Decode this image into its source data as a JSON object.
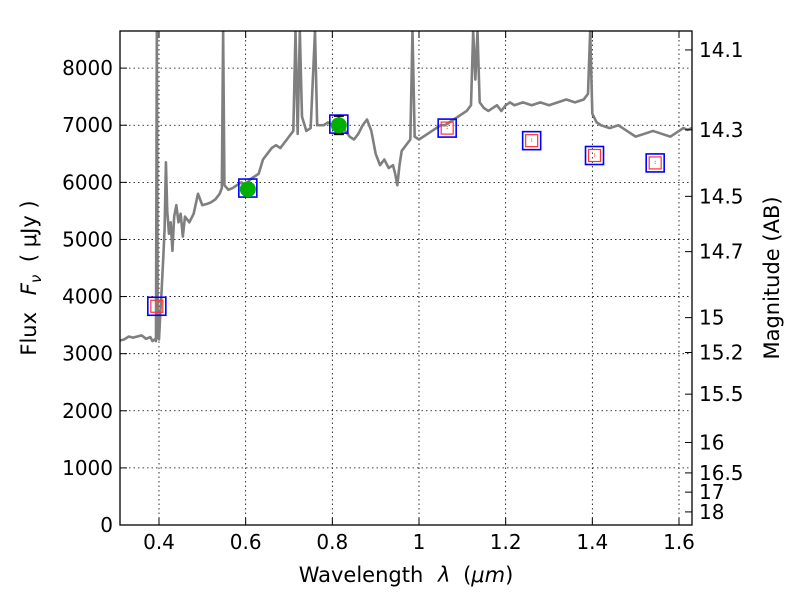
{
  "chart_data": {
    "type": "line",
    "xlabel_text": "Wavelength",
    "xlabel_symbol": "λ",
    "xlabel_unit_open": "(",
    "xlabel_unit": "μm",
    "xlabel_unit_close": ")",
    "ylabel_text": "Flux",
    "ylabel_symbol_main": "F",
    "ylabel_symbol_sub": "ν",
    "ylabel_unit": "( μJy )",
    "y2label": "Magnitude (AB)",
    "xlim": [
      0.31,
      1.63
    ],
    "ylim": [
      0,
      8650
    ],
    "grid": true,
    "x_ticks": [
      {
        "v": 0.4,
        "label": "0.4"
      },
      {
        "v": 0.6,
        "label": "0.6"
      },
      {
        "v": 0.8,
        "label": "0.8"
      },
      {
        "v": 1.0,
        "label": "1"
      },
      {
        "v": 1.2,
        "label": "1.2"
      },
      {
        "v": 1.4,
        "label": "1.4"
      },
      {
        "v": 1.6,
        "label": "1.6"
      }
    ],
    "y_ticks": [
      {
        "v": 0,
        "label": "0"
      },
      {
        "v": 1000,
        "label": "1000"
      },
      {
        "v": 2000,
        "label": "2000"
      },
      {
        "v": 3000,
        "label": "3000"
      },
      {
        "v": 4000,
        "label": "4000"
      },
      {
        "v": 5000,
        "label": "5000"
      },
      {
        "v": 6000,
        "label": "6000"
      },
      {
        "v": 7000,
        "label": "7000"
      },
      {
        "v": 8000,
        "label": "8000"
      }
    ],
    "y2_ticks": [
      {
        "mag": 14.1,
        "label": "14.1"
      },
      {
        "mag": 14.3,
        "label": "14.3"
      },
      {
        "mag": 14.5,
        "label": "14.5"
      },
      {
        "mag": 14.7,
        "label": "14.7"
      },
      {
        "mag": 15.0,
        "label": "15"
      },
      {
        "mag": 15.2,
        "label": "15.2"
      },
      {
        "mag": 15.5,
        "label": "15.5"
      },
      {
        "mag": 16.0,
        "label": "16"
      },
      {
        "mag": 16.5,
        "label": "16.5"
      },
      {
        "mag": 17.0,
        "label": "17"
      },
      {
        "mag": 18.0,
        "label": "18"
      }
    ],
    "spectrum": {
      "color": "#7f7f7f",
      "points": [
        [
          0.31,
          3230
        ],
        [
          0.32,
          3250
        ],
        [
          0.33,
          3300
        ],
        [
          0.34,
          3280
        ],
        [
          0.35,
          3300
        ],
        [
          0.36,
          3320
        ],
        [
          0.37,
          3260
        ],
        [
          0.38,
          3290
        ],
        [
          0.385,
          3220
        ],
        [
          0.39,
          3250
        ],
        [
          0.393,
          3220
        ],
        [
          0.395,
          8650
        ],
        [
          0.397,
          3300
        ],
        [
          0.4,
          3250
        ],
        [
          0.403,
          3700
        ],
        [
          0.406,
          4100
        ],
        [
          0.41,
          4700
        ],
        [
          0.413,
          5200
        ],
        [
          0.416,
          6350
        ],
        [
          0.419,
          5500
        ],
        [
          0.423,
          5100
        ],
        [
          0.427,
          5300
        ],
        [
          0.431,
          4800
        ],
        [
          0.435,
          5400
        ],
        [
          0.44,
          5600
        ],
        [
          0.445,
          5300
        ],
        [
          0.45,
          5450
        ],
        [
          0.455,
          5050
        ],
        [
          0.46,
          5400
        ],
        [
          0.47,
          5300
        ],
        [
          0.48,
          5450
        ],
        [
          0.49,
          5800
        ],
        [
          0.5,
          5600
        ],
        [
          0.51,
          5620
        ],
        [
          0.52,
          5650
        ],
        [
          0.53,
          5700
        ],
        [
          0.54,
          5800
        ],
        [
          0.545,
          5900
        ],
        [
          0.548,
          8650
        ],
        [
          0.551,
          5950
        ],
        [
          0.56,
          5870
        ],
        [
          0.57,
          5900
        ],
        [
          0.58,
          5950
        ],
        [
          0.59,
          6000
        ],
        [
          0.6,
          5950
        ],
        [
          0.61,
          6050
        ],
        [
          0.62,
          6100
        ],
        [
          0.63,
          6150
        ],
        [
          0.64,
          6400
        ],
        [
          0.65,
          6500
        ],
        [
          0.66,
          6600
        ],
        [
          0.67,
          6650
        ],
        [
          0.68,
          6600
        ],
        [
          0.69,
          6700
        ],
        [
          0.7,
          6800
        ],
        [
          0.71,
          6900
        ],
        [
          0.715,
          8650
        ],
        [
          0.72,
          6850
        ],
        [
          0.725,
          8650
        ],
        [
          0.73,
          7150
        ],
        [
          0.74,
          6900
        ],
        [
          0.75,
          6950
        ],
        [
          0.76,
          8650
        ],
        [
          0.765,
          7000
        ],
        [
          0.78,
          7000
        ],
        [
          0.79,
          7050
        ],
        [
          0.8,
          7000
        ],
        [
          0.81,
          6950
        ],
        [
          0.82,
          7000
        ],
        [
          0.83,
          6900
        ],
        [
          0.84,
          6800
        ],
        [
          0.85,
          6750
        ],
        [
          0.86,
          6850
        ],
        [
          0.87,
          7000
        ],
        [
          0.88,
          7100
        ],
        [
          0.89,
          6900
        ],
        [
          0.9,
          6500
        ],
        [
          0.91,
          6300
        ],
        [
          0.92,
          6400
        ],
        [
          0.93,
          6250
        ],
        [
          0.94,
          6300
        ],
        [
          0.945,
          6150
        ],
        [
          0.95,
          5950
        ],
        [
          0.955,
          6300
        ],
        [
          0.96,
          6550
        ],
        [
          0.97,
          6650
        ],
        [
          0.98,
          6750
        ],
        [
          0.985,
          8650
        ],
        [
          0.99,
          6800
        ],
        [
          1.0,
          6750
        ],
        [
          1.01,
          6800
        ],
        [
          1.02,
          6850
        ],
        [
          1.03,
          6900
        ],
        [
          1.04,
          6950
        ],
        [
          1.05,
          7000
        ],
        [
          1.06,
          7000
        ],
        [
          1.07,
          7050
        ],
        [
          1.08,
          7100
        ],
        [
          1.09,
          7150
        ],
        [
          1.1,
          7200
        ],
        [
          1.11,
          7250
        ],
        [
          1.12,
          7350
        ],
        [
          1.125,
          8650
        ],
        [
          1.13,
          7800
        ],
        [
          1.135,
          8650
        ],
        [
          1.14,
          7400
        ],
        [
          1.15,
          7300
        ],
        [
          1.16,
          7250
        ],
        [
          1.17,
          7300
        ],
        [
          1.18,
          7350
        ],
        [
          1.19,
          7250
        ],
        [
          1.2,
          7350
        ],
        [
          1.21,
          7400
        ],
        [
          1.22,
          7350
        ],
        [
          1.24,
          7400
        ],
        [
          1.26,
          7350
        ],
        [
          1.28,
          7400
        ],
        [
          1.3,
          7350
        ],
        [
          1.32,
          7400
        ],
        [
          1.34,
          7450
        ],
        [
          1.36,
          7400
        ],
        [
          1.38,
          7450
        ],
        [
          1.39,
          7550
        ],
        [
          1.395,
          8650
        ],
        [
          1.4,
          7200
        ],
        [
          1.41,
          7050
        ],
        [
          1.42,
          7000
        ],
        [
          1.44,
          6950
        ],
        [
          1.46,
          7000
        ],
        [
          1.48,
          6900
        ],
        [
          1.5,
          6800
        ],
        [
          1.52,
          6850
        ],
        [
          1.54,
          6900
        ],
        [
          1.56,
          6850
        ],
        [
          1.58,
          6800
        ],
        [
          1.6,
          6900
        ],
        [
          1.61,
          6950
        ],
        [
          1.62,
          6920
        ],
        [
          1.63,
          6950
        ]
      ]
    },
    "model_photometry": {
      "marker": "square",
      "color": "#0000ff",
      "points": [
        [
          0.395,
          3830
        ],
        [
          0.605,
          5900
        ],
        [
          0.815,
          7020
        ],
        [
          1.065,
          6950
        ],
        [
          1.26,
          6730
        ],
        [
          1.405,
          6470
        ],
        [
          1.545,
          6340
        ]
      ]
    },
    "upper_limits": {
      "marker": "square",
      "color": "#ff3333",
      "points": [
        [
          0.395,
          3830
        ],
        [
          1.065,
          6950
        ],
        [
          1.26,
          6730
        ],
        [
          1.405,
          6470
        ],
        [
          1.545,
          6340
        ]
      ]
    },
    "observed": {
      "marker": "circle",
      "color": "#00b000",
      "points": [
        {
          "x": 0.605,
          "y": 5880,
          "err": 60
        },
        {
          "x": 0.815,
          "y": 7000,
          "err": 160
        }
      ]
    }
  }
}
